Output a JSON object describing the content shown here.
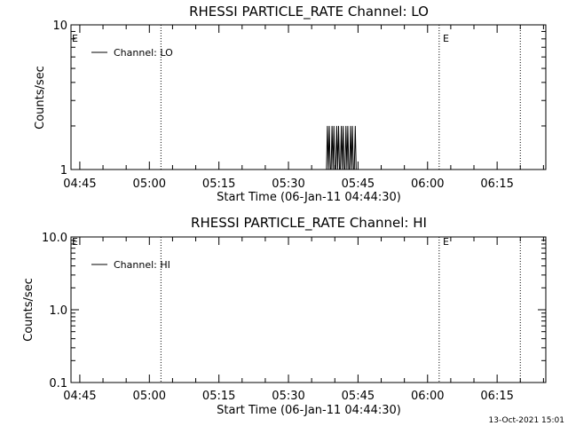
{
  "chart_data": [
    {
      "type": "line",
      "title": "RHESSI PARTICLE_RATE Channel: LO",
      "xlabel": "Start Time (06-Jan-11 04:44:30)",
      "ylabel": "Counts/sec",
      "x_tick_labels": [
        "04:45",
        "05:00",
        "05:15",
        "05:30",
        "05:45",
        "06:00",
        "06:15"
      ],
      "y_tick_labels": [
        "1",
        "10"
      ],
      "y_scale": "log",
      "ylim": [
        1,
        10
      ],
      "legend_entry": "Channel: LO",
      "legend_position": "top-left",
      "event_flags": [
        "E",
        "E"
      ],
      "vertical_dotted_lines_min": [
        18,
        78,
        95.5
      ],
      "series": [
        {
          "name": "Channel: LO",
          "x_minutes": [
            53.7,
            53.9,
            54.1,
            54.3,
            54.5,
            54.7,
            54.9,
            55.1,
            55.3,
            55.5,
            55.7,
            55.9,
            56.1,
            56.3,
            56.5,
            56.7,
            56.9,
            57.1,
            57.3,
            57.5,
            57.7,
            57.9,
            58.1,
            58.3,
            58.5,
            58.7,
            58.9,
            59.1,
            59.3,
            59.5,
            59.7,
            59.9,
            60.1
          ],
          "values": [
            1,
            2,
            1,
            2,
            1,
            1,
            2,
            1,
            2,
            1,
            1,
            2,
            1,
            2,
            1,
            1,
            2,
            1,
            2,
            1,
            1,
            2,
            1,
            2,
            1,
            1,
            2,
            1,
            2,
            1,
            1,
            2,
            1
          ]
        }
      ]
    },
    {
      "type": "line",
      "title": "RHESSI PARTICLE_RATE Channel: HI",
      "xlabel": "Start Time (06-Jan-11 04:44:30)",
      "ylabel": "Counts/sec",
      "x_tick_labels": [
        "04:45",
        "05:00",
        "05:15",
        "05:30",
        "05:45",
        "06:00",
        "06:15"
      ],
      "y_tick_labels": [
        "0.1",
        "1.0",
        "10.0"
      ],
      "y_scale": "log",
      "ylim": [
        0.1,
        10
      ],
      "legend_entry": "Channel: HI",
      "legend_position": "top-left",
      "event_flags": [
        "E",
        "E"
      ],
      "vertical_dotted_lines_min": [
        18,
        78,
        95.5
      ],
      "series": [
        {
          "name": "Channel: HI",
          "x_minutes": [],
          "values": []
        }
      ]
    }
  ],
  "footer": {
    "timestamp": "13-Oct-2021 15:01"
  }
}
